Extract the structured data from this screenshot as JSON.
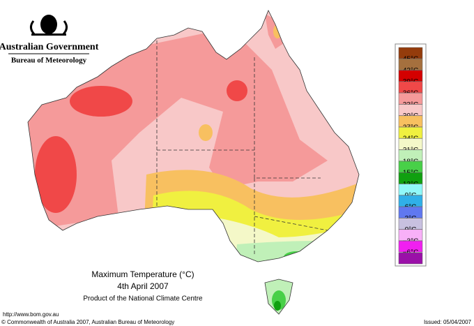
{
  "header": {
    "agency": "Australian Government",
    "bureau": "Bureau of Meteorology"
  },
  "legend": [
    {
      "label": "45°C",
      "color": "#943c0c"
    },
    {
      "label": "42°C",
      "color": "#a5703e"
    },
    {
      "label": "39°C",
      "color": "#d40000"
    },
    {
      "label": "36°C",
      "color": "#f04848"
    },
    {
      "label": "33°C",
      "color": "#f59a9a"
    },
    {
      "label": "30°C",
      "color": "#f8c8c8"
    },
    {
      "label": "27°C",
      "color": "#f8c060"
    },
    {
      "label": "24°C",
      "color": "#f0f040"
    },
    {
      "label": "21°C",
      "color": "#f4f8c8"
    },
    {
      "label": "18°C",
      "color": "#c0f0b8"
    },
    {
      "label": "15°C",
      "color": "#48d048"
    },
    {
      "label": "12°C",
      "color": "#10a010"
    },
    {
      "label": "9°C",
      "color": "#90f8f8"
    },
    {
      "label": "6°C",
      "color": "#30b0e8"
    },
    {
      "label": "3°C",
      "color": "#6078f0"
    },
    {
      "label": "0°C",
      "color": "#c8c0e0"
    },
    {
      "label": "−3°C",
      "color": "#f8b0f8"
    },
    {
      "label": "−6°C",
      "color": "#f020f0"
    }
  ],
  "caption": {
    "title": "Maximum Temperature (°C)",
    "date": "4th April 2007",
    "product": "Product of the National Climate Centre"
  },
  "footer": {
    "url": "http://www.bom.gov.au",
    "copyright": "© Commonwealth of Australia 2007, Australian Bureau of Meteorology",
    "issued": "Issued: 05/04/2007"
  }
}
